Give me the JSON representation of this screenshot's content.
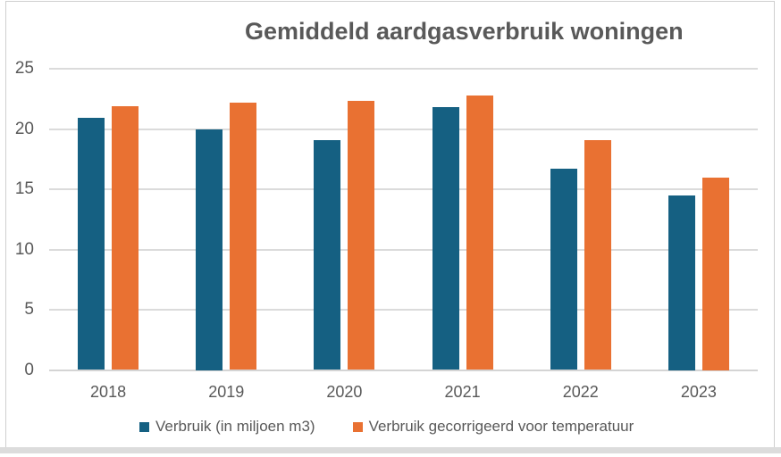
{
  "window": {
    "border_color": "#cfcfcf",
    "bottom_strip_color": "#dcdcdc",
    "background": "#ffffff"
  },
  "chart_data": {
    "type": "bar",
    "title": "Gemiddeld aardgasverbruik woningen",
    "categories": [
      "2018",
      "2019",
      "2020",
      "2021",
      "2022",
      "2023"
    ],
    "series": [
      {
        "name": "Verbruik (in miljoen m3)",
        "color": "#156082",
        "values": [
          20.9,
          20.0,
          19.1,
          21.8,
          16.7,
          14.5
        ]
      },
      {
        "name": "Verbruik gecorrigeerd voor temperatuur",
        "color": "#E97132",
        "values": [
          21.9,
          22.2,
          22.3,
          22.8,
          19.1,
          16.0
        ]
      }
    ],
    "xlabel": "",
    "ylabel": "",
    "ylim": [
      0,
      25
    ],
    "yticks": [
      0,
      5,
      10,
      15,
      20,
      25
    ],
    "grid": true,
    "legend_position": "bottom",
    "text_color": "#595959",
    "gridline_color": "#DBDBDB"
  }
}
